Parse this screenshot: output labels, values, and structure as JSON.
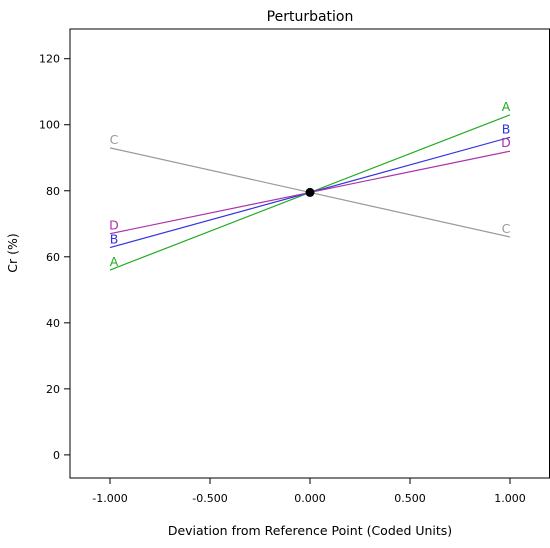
{
  "chart_data": {
    "type": "line",
    "title": "Perturbation",
    "xlabel": "Deviation from Reference Point (Coded Units)",
    "ylabel": "Cr (%)",
    "xlim": [
      -1.2,
      1.2
    ],
    "ylim": [
      -7,
      129
    ],
    "x_ticks": [
      -1.0,
      -0.5,
      0.0,
      0.5,
      1.0
    ],
    "x_tick_labels": [
      "-1.000",
      "-0.500",
      "0.000",
      "0.500",
      "1.000"
    ],
    "y_ticks": [
      0,
      20,
      40,
      60,
      80,
      100,
      120
    ],
    "y_tick_labels": [
      "0",
      "20",
      "40",
      "60",
      "80",
      "100",
      "120"
    ],
    "grid": false,
    "legend": "none",
    "reference_point": {
      "x": 0.0,
      "y": 79.5
    },
    "series": [
      {
        "name": "A",
        "color": "#22aa22",
        "x": [
          -1.0,
          1.0
        ],
        "y": [
          56.0,
          103.0
        ]
      },
      {
        "name": "B",
        "color": "#3333dd",
        "x": [
          -1.0,
          1.0
        ],
        "y": [
          62.8,
          96.2
        ]
      },
      {
        "name": "D",
        "color": "#aa33aa",
        "x": [
          -1.0,
          1.0
        ],
        "y": [
          67.0,
          92.0
        ]
      },
      {
        "name": "C",
        "color": "#999999",
        "x": [
          -1.0,
          1.0
        ],
        "y": [
          93.0,
          66.0
        ]
      }
    ]
  }
}
